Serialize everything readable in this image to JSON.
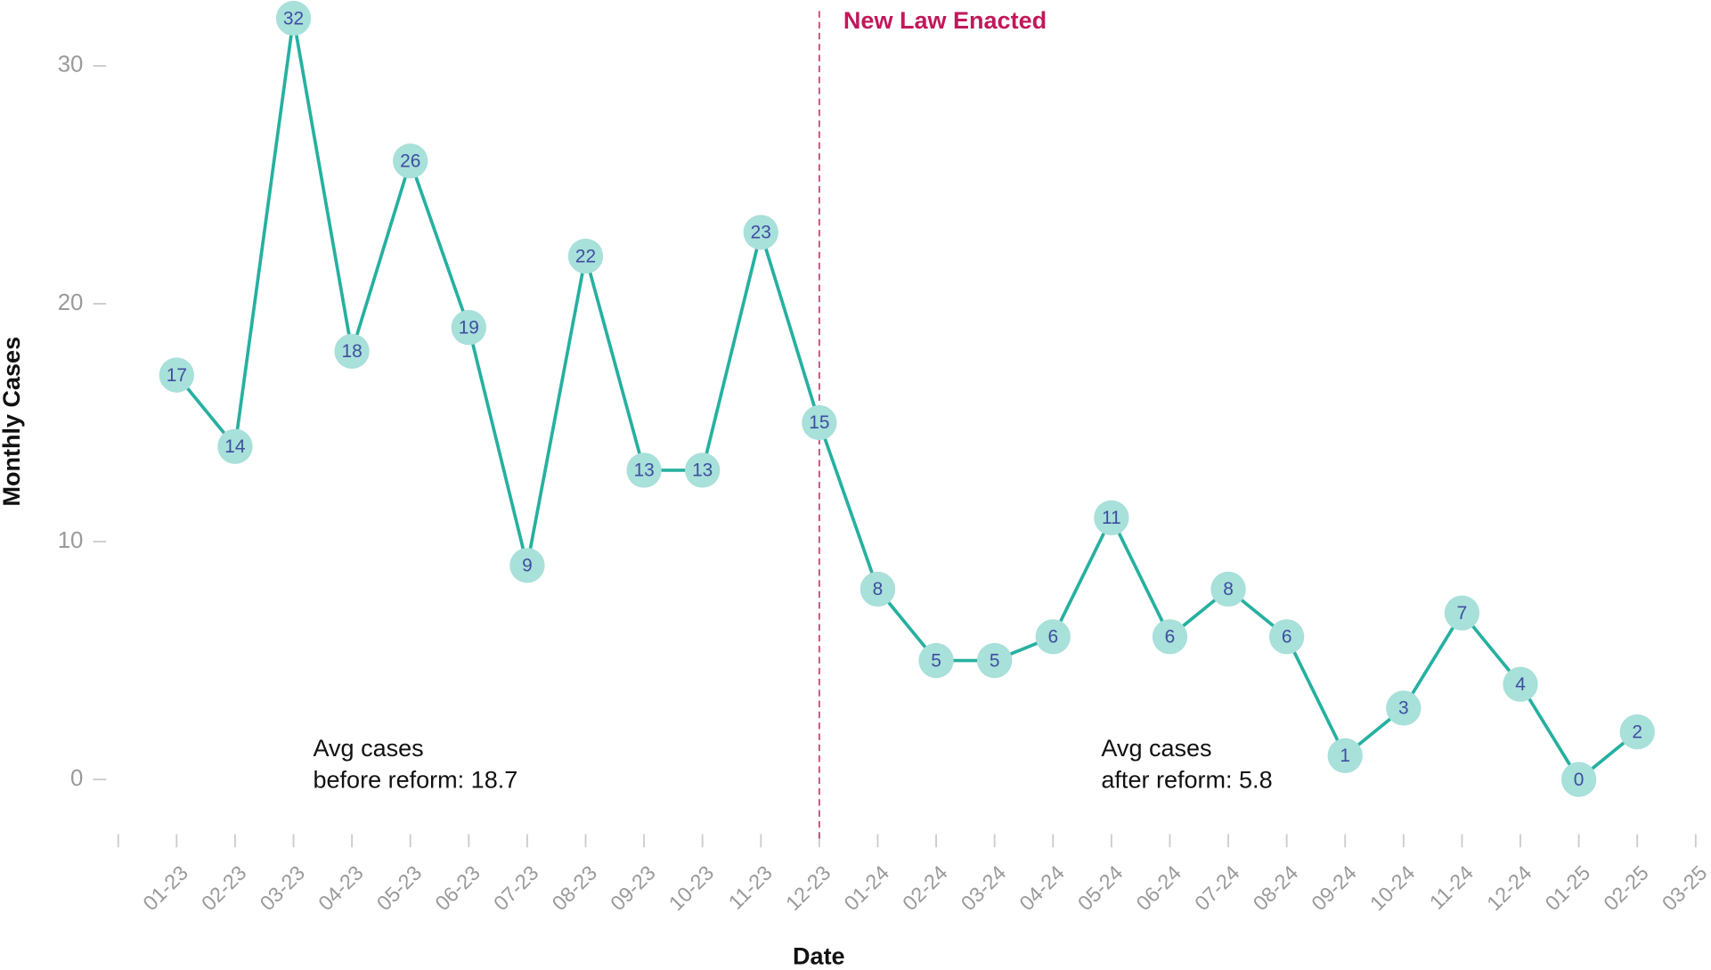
{
  "chart_data": {
    "type": "line",
    "x_label": "Date",
    "y_label": "Monthly Cases",
    "categories": [
      null,
      "01-23",
      "02-23",
      "03-23",
      "04-23",
      "05-23",
      "06-23",
      "07-23",
      "08-23",
      "09-23",
      "10-23",
      "11-23",
      "12-23",
      "01-24",
      "02-24",
      "03-24",
      "04-24",
      "05-24",
      "06-24",
      "07-24",
      "08-24",
      "09-24",
      "10-24",
      "11-24",
      "12-24",
      "01-25",
      "02-25",
      "03-25"
    ],
    "series": [
      {
        "name": "Monthly Cases",
        "color": "#26b0a0",
        "marker_color": "#a8e0da",
        "values": [
          null,
          17,
          14,
          32,
          18,
          26,
          19,
          9,
          22,
          13,
          13,
          23,
          15,
          8,
          5,
          5,
          6,
          11,
          6,
          8,
          6,
          1,
          3,
          7,
          4,
          0,
          2,
          null
        ]
      }
    ],
    "ylim": [
      -2.5,
      32.5
    ],
    "yticks": [
      0,
      10,
      20,
      30
    ],
    "grid": false,
    "vline": {
      "x": "12-23",
      "label": "New Law Enacted",
      "color": "#c2185b"
    },
    "annotations": [
      {
        "lines": [
          "Avg cases",
          "before reform: 18.7"
        ]
      },
      {
        "lines": [
          "Avg cases",
          "after reform: 5.8"
        ]
      }
    ]
  }
}
